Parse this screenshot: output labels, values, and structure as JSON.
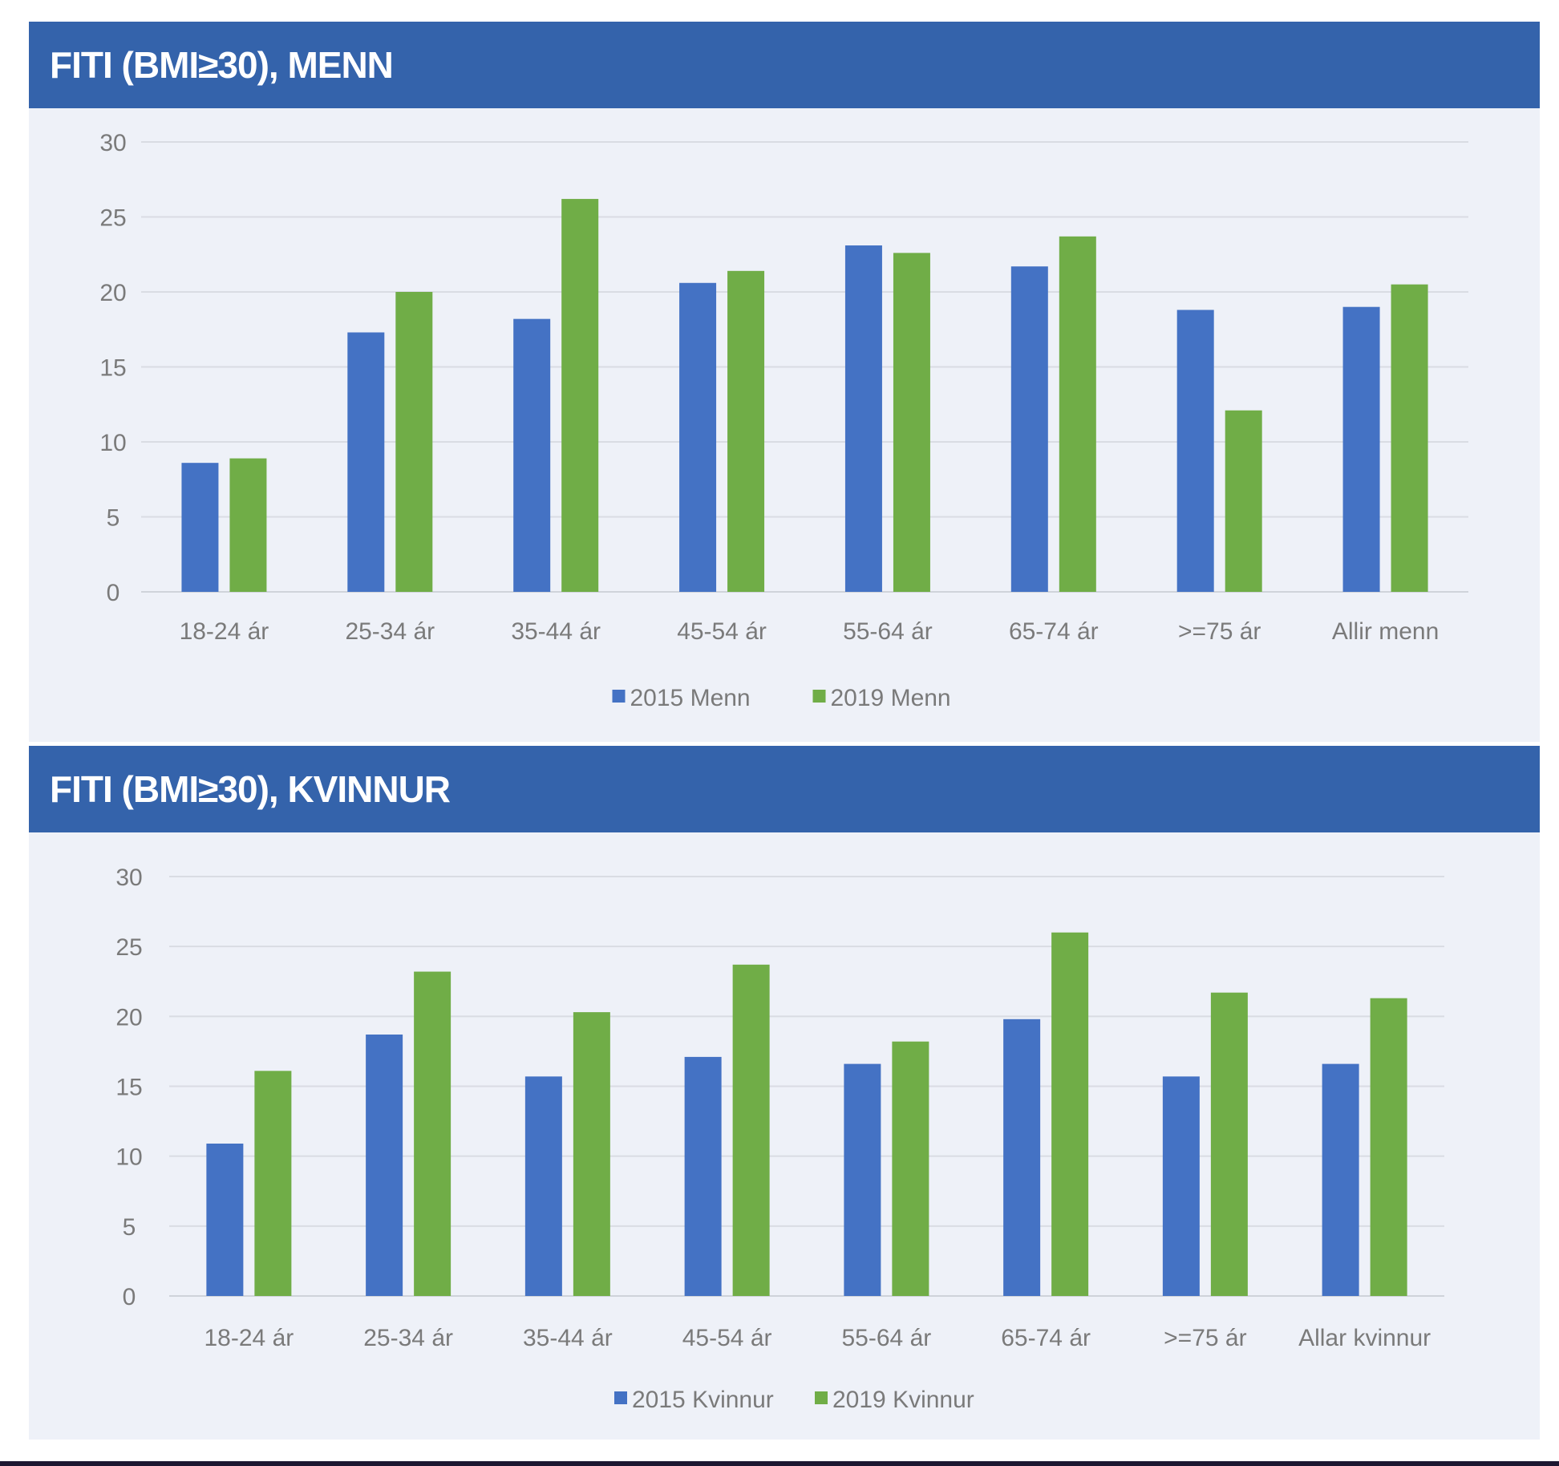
{
  "colors": {
    "header": "#3463ab",
    "series2015": "#4472c4",
    "series2019": "#70ad47",
    "panel": "#eef1f8"
  },
  "chart_data": [
    {
      "type": "bar",
      "title": "FITI (BMI≥30), MENN",
      "categories": [
        "18-24 ár",
        "25-34 ár",
        "35-44 ár",
        "45-54 ár",
        "55-64 ár",
        "65-74 ár",
        ">=75 ár",
        "Allir menn"
      ],
      "series": [
        {
          "name": "2015 Menn",
          "values": [
            8.6,
            17.3,
            18.2,
            20.6,
            23.1,
            21.7,
            18.8,
            19.0
          ]
        },
        {
          "name": "2019 Menn",
          "values": [
            8.9,
            20.0,
            26.2,
            21.4,
            22.6,
            23.7,
            12.1,
            20.5
          ]
        }
      ],
      "yticks": [
        "0",
        "5",
        "10",
        "15",
        "20",
        "25",
        "30"
      ],
      "ylim": [
        0,
        30
      ],
      "grid": true,
      "legend": "bottom",
      "xlabel": "",
      "ylabel": ""
    },
    {
      "type": "bar",
      "title": "FITI (BMI≥30), KVINNUR",
      "categories": [
        "18-24 ár",
        "25-34 ár",
        "35-44 ár",
        "45-54 ár",
        "55-64 ár",
        "65-74 ár",
        ">=75 ár",
        "Allar kvinnur"
      ],
      "series": [
        {
          "name": "2015 Kvinnur",
          "values": [
            10.9,
            18.7,
            15.7,
            17.1,
            16.6,
            19.8,
            15.7,
            16.6
          ]
        },
        {
          "name": "2019 Kvinnur",
          "values": [
            16.1,
            23.2,
            20.3,
            23.7,
            18.2,
            26.0,
            21.7,
            21.3
          ]
        }
      ],
      "yticks": [
        "0",
        "5",
        "10",
        "15",
        "20",
        "25",
        "30"
      ],
      "ylim": [
        0,
        30
      ],
      "grid": true,
      "legend": "bottom",
      "xlabel": "",
      "ylabel": ""
    }
  ]
}
